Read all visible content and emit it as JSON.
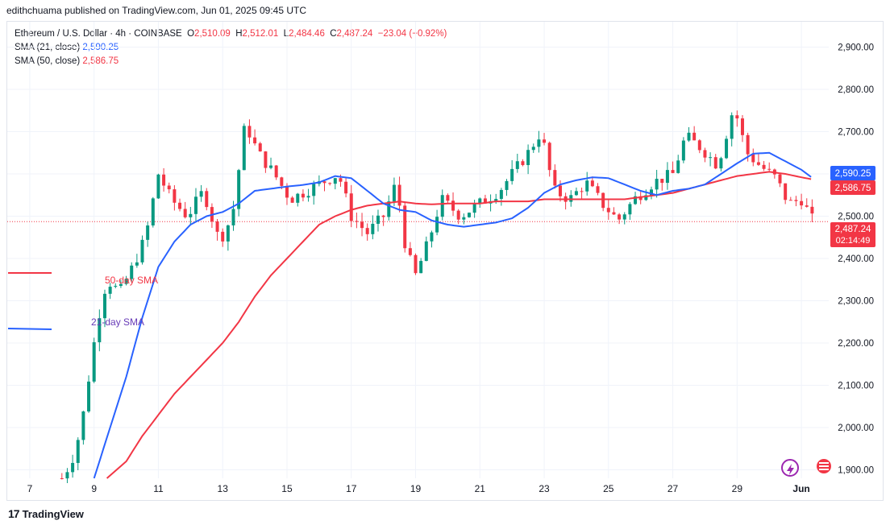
{
  "publisher": "edithchuama published on TradingView.com, Jun 01, 2025 09:45 UTC",
  "legend": {
    "symbol": "Ethereum / U.S. Dollar · 4h · COINBASE",
    "o_label": "O",
    "o_value": "2,510.09",
    "h_label": "H",
    "h_value": "2,512.01",
    "l_label": "L",
    "l_value": "2,484.46",
    "c_label": "C",
    "c_value": "2,487.24",
    "change": "−23.04 (−0.92%)",
    "sma21_label": "SMA (21, close)",
    "sma21_value": "2,590.25",
    "sma50_label": "SMA (50, close)",
    "sma50_value": "2,586.75"
  },
  "annotations": {
    "sma50": "50-day SMA",
    "sma21": "21-day SMA"
  },
  "price_tags": {
    "sma21": "2,590.25",
    "sma50": "2,586.75",
    "last": "2,487.24",
    "countdown": "02:14:49"
  },
  "footer": {
    "brand": "TradingView",
    "logo": "17"
  },
  "colors": {
    "up": "#089981",
    "down": "#f23645",
    "sma21": "#2962ff",
    "sma50": "#f23645",
    "grid": "#f0f3fa",
    "axis_text": "#131722"
  },
  "chart_data": {
    "type": "candlestick",
    "title": "Ethereum / U.S. Dollar · 4h · COINBASE",
    "ylim": [
      1880,
      2960
    ],
    "y_ticks": [
      1900,
      2000,
      2100,
      2200,
      2300,
      2400,
      2500,
      2600,
      2700,
      2800,
      2900
    ],
    "y_tick_labels": [
      "1,900.00",
      "2,000.00",
      "2,100.00",
      "2,200.00",
      "2,300.00",
      "2,400.00",
      "2,500.00",
      "2,600.00",
      "2,700.00",
      "2,800.00",
      "2,900.00"
    ],
    "x_range_days": [
      6.3,
      31.85
    ],
    "x_ticks": [
      {
        "day": 7,
        "label": "7"
      },
      {
        "day": 9,
        "label": "9"
      },
      {
        "day": 11,
        "label": "11"
      },
      {
        "day": 13,
        "label": "13"
      },
      {
        "day": 15,
        "label": "15"
      },
      {
        "day": 17,
        "label": "17"
      },
      {
        "day": 19,
        "label": "19"
      },
      {
        "day": 21,
        "label": "21"
      },
      {
        "day": 23,
        "label": "23"
      },
      {
        "day": 25,
        "label": "25"
      },
      {
        "day": 27,
        "label": "27"
      },
      {
        "day": 29,
        "label": "29"
      },
      {
        "day": 31,
        "label": "Jun"
      }
    ],
    "price_anchors": [
      [
        8.0,
        1880
      ],
      [
        8.3,
        1920
      ],
      [
        8.6,
        2000
      ],
      [
        8.9,
        2150
      ],
      [
        9.1,
        2250
      ],
      [
        9.4,
        2350
      ],
      [
        9.8,
        2320
      ],
      [
        10.2,
        2380
      ],
      [
        10.6,
        2450
      ],
      [
        11.0,
        2600
      ],
      [
        11.4,
        2540
      ],
      [
        11.9,
        2500
      ],
      [
        12.4,
        2560
      ],
      [
        12.9,
        2440
      ],
      [
        13.3,
        2500
      ],
      [
        13.7,
        2720
      ],
      [
        14.1,
        2650
      ],
      [
        14.6,
        2600
      ],
      [
        15.1,
        2540
      ],
      [
        15.6,
        2560
      ],
      [
        16.1,
        2580
      ],
      [
        16.6,
        2600
      ],
      [
        17.0,
        2500
      ],
      [
        17.5,
        2460
      ],
      [
        18.0,
        2500
      ],
      [
        18.4,
        2580
      ],
      [
        18.7,
        2420
      ],
      [
        19.0,
        2360
      ],
      [
        19.4,
        2440
      ],
      [
        19.8,
        2540
      ],
      [
        20.4,
        2500
      ],
      [
        21.0,
        2530
      ],
      [
        21.6,
        2560
      ],
      [
        22.0,
        2600
      ],
      [
        22.5,
        2650
      ],
      [
        22.9,
        2700
      ],
      [
        23.3,
        2560
      ],
      [
        23.8,
        2540
      ],
      [
        24.3,
        2580
      ],
      [
        24.8,
        2530
      ],
      [
        25.3,
        2490
      ],
      [
        25.8,
        2540
      ],
      [
        26.4,
        2580
      ],
      [
        27.0,
        2600
      ],
      [
        27.4,
        2690
      ],
      [
        27.9,
        2660
      ],
      [
        28.4,
        2620
      ],
      [
        28.9,
        2760
      ],
      [
        29.3,
        2650
      ],
      [
        29.7,
        2620
      ],
      [
        30.2,
        2590
      ],
      [
        30.6,
        2530
      ],
      [
        31.0,
        2540
      ],
      [
        31.35,
        2490
      ]
    ],
    "sma21": [
      [
        9.0,
        1880
      ],
      [
        9.5,
        2000
      ],
      [
        10.0,
        2120
      ],
      [
        10.5,
        2260
      ],
      [
        11.0,
        2380
      ],
      [
        11.5,
        2440
      ],
      [
        12.0,
        2480
      ],
      [
        12.5,
        2500
      ],
      [
        13.0,
        2510
      ],
      [
        13.5,
        2530
      ],
      [
        14.0,
        2560
      ],
      [
        14.5,
        2565
      ],
      [
        15.0,
        2570
      ],
      [
        15.5,
        2574
      ],
      [
        16.0,
        2580
      ],
      [
        16.5,
        2595
      ],
      [
        17.0,
        2590
      ],
      [
        17.5,
        2560
      ],
      [
        18.0,
        2530
      ],
      [
        18.5,
        2515
      ],
      [
        19.0,
        2510
      ],
      [
        19.5,
        2490
      ],
      [
        20.0,
        2480
      ],
      [
        20.5,
        2475
      ],
      [
        21.0,
        2480
      ],
      [
        21.5,
        2485
      ],
      [
        22.0,
        2495
      ],
      [
        22.5,
        2520
      ],
      [
        23.0,
        2555
      ],
      [
        23.5,
        2575
      ],
      [
        24.0,
        2585
      ],
      [
        24.5,
        2592
      ],
      [
        25.0,
        2590
      ],
      [
        25.5,
        2575
      ],
      [
        26.0,
        2560
      ],
      [
        26.5,
        2550
      ],
      [
        27.0,
        2560
      ],
      [
        27.5,
        2565
      ],
      [
        28.0,
        2575
      ],
      [
        28.5,
        2600
      ],
      [
        29.0,
        2625
      ],
      [
        29.5,
        2648
      ],
      [
        30.0,
        2650
      ],
      [
        30.5,
        2630
      ],
      [
        31.0,
        2610
      ],
      [
        31.35,
        2590
      ]
    ],
    "sma50": [
      [
        9.4,
        1880
      ],
      [
        10.0,
        1920
      ],
      [
        10.5,
        1980
      ],
      [
        11.0,
        2030
      ],
      [
        11.5,
        2080
      ],
      [
        12.0,
        2120
      ],
      [
        12.5,
        2160
      ],
      [
        13.0,
        2200
      ],
      [
        13.5,
        2250
      ],
      [
        14.0,
        2310
      ],
      [
        14.5,
        2360
      ],
      [
        15.0,
        2400
      ],
      [
        15.5,
        2440
      ],
      [
        16.0,
        2480
      ],
      [
        16.5,
        2500
      ],
      [
        17.0,
        2515
      ],
      [
        17.5,
        2525
      ],
      [
        18.0,
        2530
      ],
      [
        18.5,
        2535
      ],
      [
        19.0,
        2530
      ],
      [
        19.5,
        2528
      ],
      [
        20.0,
        2530
      ],
      [
        20.5,
        2530
      ],
      [
        21.0,
        2530
      ],
      [
        21.5,
        2535
      ],
      [
        22.0,
        2535
      ],
      [
        22.5,
        2535
      ],
      [
        23.0,
        2540
      ],
      [
        23.5,
        2540
      ],
      [
        24.0,
        2540
      ],
      [
        24.5,
        2540
      ],
      [
        25.0,
        2540
      ],
      [
        25.5,
        2540
      ],
      [
        26.0,
        2545
      ],
      [
        26.5,
        2550
      ],
      [
        27.0,
        2555
      ],
      [
        27.5,
        2565
      ],
      [
        28.0,
        2575
      ],
      [
        28.5,
        2585
      ],
      [
        29.0,
        2595
      ],
      [
        29.5,
        2600
      ],
      [
        30.0,
        2605
      ],
      [
        30.5,
        2600
      ],
      [
        31.0,
        2592
      ],
      [
        31.35,
        2587
      ]
    ],
    "last_price": 2487.24
  }
}
